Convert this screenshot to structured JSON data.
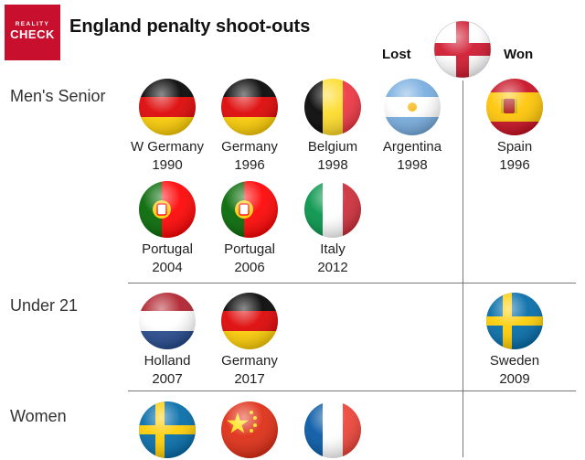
{
  "logo": {
    "line1": "REALITY",
    "line2": "CHECK"
  },
  "title": "England penalty shoot-outs",
  "headers": {
    "lost": "Lost",
    "won": "Won"
  },
  "sections": {
    "men": "Men's Senior",
    "u21": "Under 21",
    "women": "Women"
  },
  "matches": {
    "m1": {
      "team": "W Germany",
      "year": "1990",
      "flag": "germany-flag"
    },
    "m2": {
      "team": "Germany",
      "year": "1996",
      "flag": "germany-flag"
    },
    "m3": {
      "team": "Belgium",
      "year": "1998",
      "flag": "belgium-flag"
    },
    "m4": {
      "team": "Argentina",
      "year": "1998",
      "flag": "argentina-flag"
    },
    "m5": {
      "team": "Spain",
      "year": "1996",
      "flag": "spain-flag"
    },
    "m6": {
      "team": "Portugal",
      "year": "2004",
      "flag": "portugal-flag"
    },
    "m7": {
      "team": "Portugal",
      "year": "2006",
      "flag": "portugal-flag"
    },
    "m8": {
      "team": "Italy",
      "year": "2012",
      "flag": "italy-flag"
    },
    "u1": {
      "team": "Holland",
      "year": "2007",
      "flag": "netherlands-flag"
    },
    "u2": {
      "team": "Germany",
      "year": "2017",
      "flag": "germany-flag"
    },
    "u3": {
      "team": "Sweden",
      "year": "2009",
      "flag": "sweden-flag"
    },
    "w1": {
      "flag": "sweden-flag"
    },
    "w2": {
      "flag": "china-flag"
    },
    "w3": {
      "flag": "france-flag"
    }
  },
  "colors": {
    "brand_red": "#c8102e",
    "divider": "#777777"
  }
}
